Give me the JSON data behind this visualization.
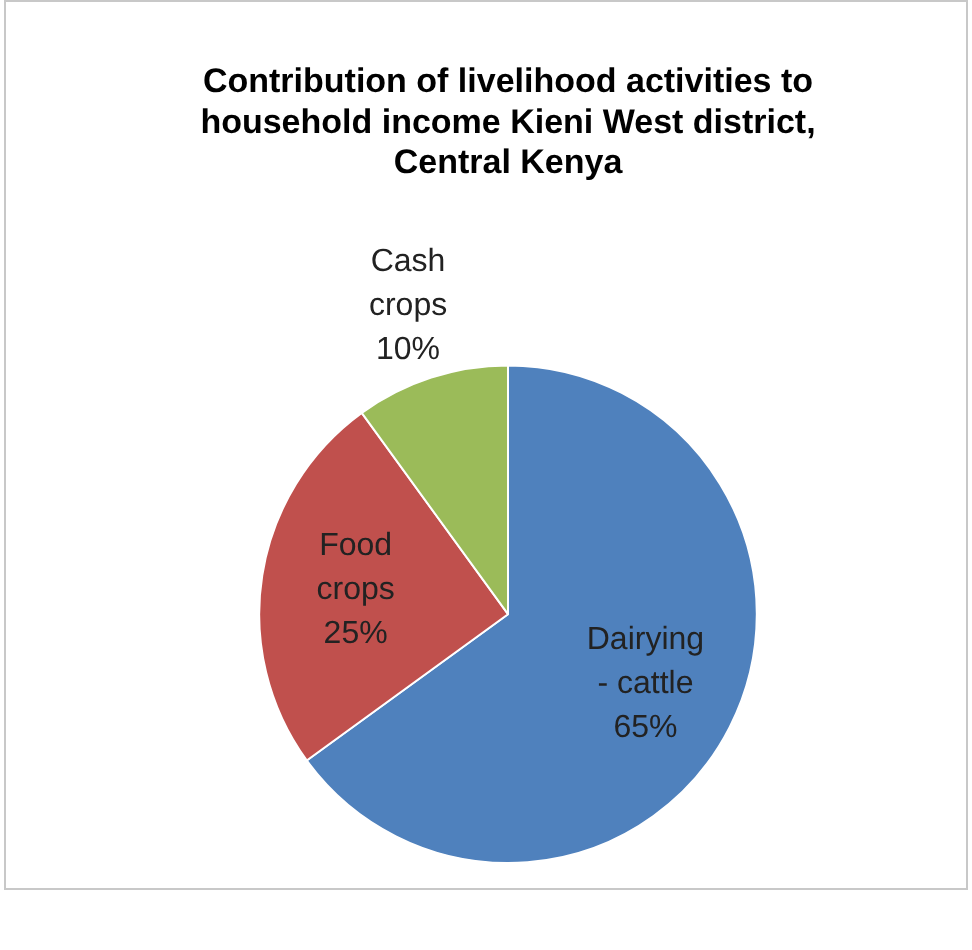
{
  "chart_data": {
    "type": "pie",
    "title": "Contribution of livelihood activities to household income Kieni West district, Central Kenya",
    "categories": [
      "Dairying - cattle",
      "Food crops",
      "Cash crops"
    ],
    "values": [
      65,
      25,
      10
    ],
    "colors": [
      "#4f81bd",
      "#c0504d",
      "#9bbb59"
    ],
    "value_labels": [
      "65%",
      "25%",
      "10%"
    ],
    "legend": false
  }
}
